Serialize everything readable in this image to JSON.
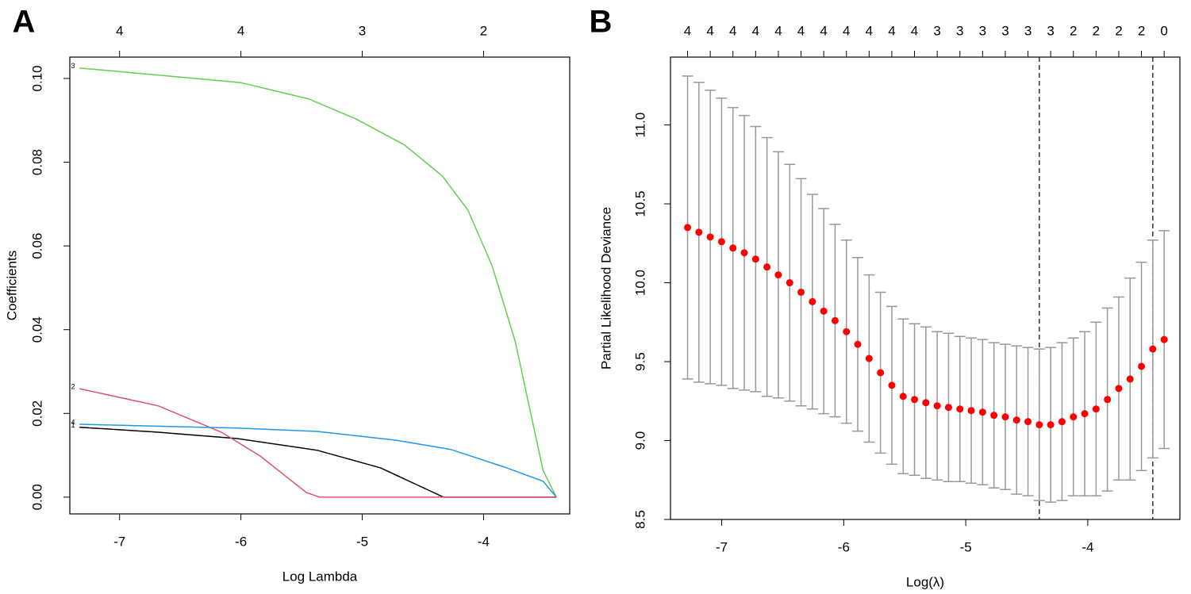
{
  "chart_data": [
    {
      "type": "line",
      "panel": "A",
      "xlabel": "Log Lambda",
      "ylabel": "Coefficients",
      "xlim": [
        -7.41,
        -3.29
      ],
      "ylim": [
        -0.004,
        0.1051
      ],
      "xticks": [
        -7,
        -6,
        -5,
        -4
      ],
      "x2ticks": [
        {
          "value": -7,
          "label": "4"
        },
        {
          "value": -6,
          "label": "4"
        },
        {
          "value": -5,
          "label": "3"
        },
        {
          "value": -4,
          "label": "2"
        }
      ],
      "yticks": [
        {
          "value": 0,
          "label": "0.00"
        },
        {
          "value": 0.02,
          "label": "0.02"
        },
        {
          "value": 0.04,
          "label": "0.04"
        },
        {
          "value": 0.06,
          "label": "0.06"
        },
        {
          "value": 0.08,
          "label": "0.08"
        },
        {
          "value": 0.1,
          "label": "0.10"
        }
      ],
      "series": [
        {
          "name": "1",
          "color": "#000000",
          "x": [
            -7.33,
            -6.68,
            -6.03,
            -5.37,
            -4.85,
            -4.33,
            -3.4
          ],
          "values": [
            0.0167,
            0.0155,
            0.014,
            0.0112,
            0.007,
            0,
            0
          ]
        },
        {
          "name": "2",
          "color": "#df536b",
          "x": [
            -7.33,
            -6.68,
            -6.16,
            -5.84,
            -5.46,
            -5.35,
            -3.4
          ],
          "values": [
            0.0259,
            0.0218,
            0.0155,
            0.0098,
            0.0011,
            0,
            0
          ]
        },
        {
          "name": "3",
          "color": "#61d04f",
          "x": [
            -7.33,
            -6.68,
            -6.0,
            -5.44,
            -5.05,
            -4.65,
            -4.34,
            -4.13,
            -3.93,
            -3.74,
            -3.51,
            -3.4
          ],
          "values": [
            0.1025,
            0.1008,
            0.099,
            0.0951,
            0.0903,
            0.0841,
            0.0767,
            0.0686,
            0.0553,
            0.0373,
            0.0064,
            0
          ]
        },
        {
          "name": "4",
          "color": "#2297e6",
          "x": [
            -7.33,
            -6.03,
            -5.37,
            -4.72,
            -4.27,
            -3.81,
            -3.51,
            -3.4
          ],
          "values": [
            0.0174,
            0.0165,
            0.0157,
            0.0136,
            0.0114,
            0.007,
            0.0038,
            0
          ]
        }
      ]
    },
    {
      "type": "errorbar",
      "panel": "B",
      "xlabel": "Log(λ)",
      "ylabel": "Partial Likelihood Deviance",
      "xlim": [
        -7.42,
        -3.245
      ],
      "ylim": [
        8.5,
        11.43
      ],
      "xticks": [
        -7,
        -6,
        -5,
        -4
      ],
      "yticks": [
        8.5,
        {
          "value": 9,
          "label": "9.0"
        },
        9.5,
        {
          "value": 10,
          "label": "10.0"
        },
        10.5,
        {
          "value": 11,
          "label": "11.0"
        }
      ],
      "x2ticks": [
        {
          "value": -7.28,
          "label": "4"
        },
        {
          "value": -7.094,
          "label": "4"
        },
        {
          "value": -6.908,
          "label": "4"
        },
        {
          "value": -6.722,
          "label": "4"
        },
        {
          "value": -6.536,
          "label": "4"
        },
        {
          "value": -6.35,
          "label": "4"
        },
        {
          "value": -6.164,
          "label": "4"
        },
        {
          "value": -5.978,
          "label": "4"
        },
        {
          "value": -5.792,
          "label": "4"
        },
        {
          "value": -5.606,
          "label": "4"
        },
        {
          "value": -5.42,
          "label": "4"
        },
        {
          "value": -5.234,
          "label": "3"
        },
        {
          "value": -5.048,
          "label": "3"
        },
        {
          "value": -4.862,
          "label": "3"
        },
        {
          "value": -4.676,
          "label": "3"
        },
        {
          "value": -4.49,
          "label": "3"
        },
        {
          "value": -4.304,
          "label": "3"
        },
        {
          "value": -4.118,
          "label": "2"
        },
        {
          "value": -3.932,
          "label": "2"
        },
        {
          "value": -3.746,
          "label": "2"
        },
        {
          "value": -3.56,
          "label": "2"
        },
        {
          "value": -3.374,
          "label": "0"
        }
      ],
      "color": "#ff0000",
      "error_color": "#999999",
      "x": [
        -7.28,
        -7.187,
        -7.094,
        -7.001,
        -6.908,
        -6.815,
        -6.722,
        -6.629,
        -6.536,
        -6.443,
        -6.35,
        -6.257,
        -6.164,
        -6.071,
        -5.978,
        -5.885,
        -5.792,
        -5.699,
        -5.606,
        -5.513,
        -5.42,
        -5.327,
        -5.234,
        -5.141,
        -5.048,
        -4.955,
        -4.862,
        -4.769,
        -4.676,
        -4.583,
        -4.49,
        -4.397,
        -4.304,
        -4.211,
        -4.118,
        -4.025,
        -3.932,
        -3.839,
        -3.746,
        -3.653,
        -3.56,
        -3.467,
        -3.374
      ],
      "values": [
        10.35,
        10.32,
        10.29,
        10.26,
        10.22,
        10.19,
        10.15,
        10.1,
        10.05,
        10.0,
        9.94,
        9.88,
        9.82,
        9.76,
        9.69,
        9.61,
        9.52,
        9.43,
        9.35,
        9.28,
        9.26,
        9.24,
        9.22,
        9.21,
        9.2,
        9.19,
        9.18,
        9.16,
        9.15,
        9.13,
        9.12,
        9.1,
        9.1,
        9.12,
        9.15,
        9.17,
        9.2,
        9.26,
        9.33,
        9.39,
        9.47,
        9.58,
        9.64
      ],
      "errors": [
        0.96,
        0.95,
        0.93,
        0.91,
        0.89,
        0.87,
        0.84,
        0.82,
        0.78,
        0.75,
        0.72,
        0.68,
        0.65,
        0.61,
        0.58,
        0.55,
        0.53,
        0.51,
        0.5,
        0.49,
        0.48,
        0.48,
        0.47,
        0.47,
        0.46,
        0.46,
        0.46,
        0.46,
        0.46,
        0.47,
        0.47,
        0.48,
        0.49,
        0.5,
        0.5,
        0.52,
        0.55,
        0.58,
        0.58,
        0.64,
        0.66,
        0.69,
        0.69
      ],
      "vlines": [
        -4.397,
        -3.467
      ]
    }
  ]
}
